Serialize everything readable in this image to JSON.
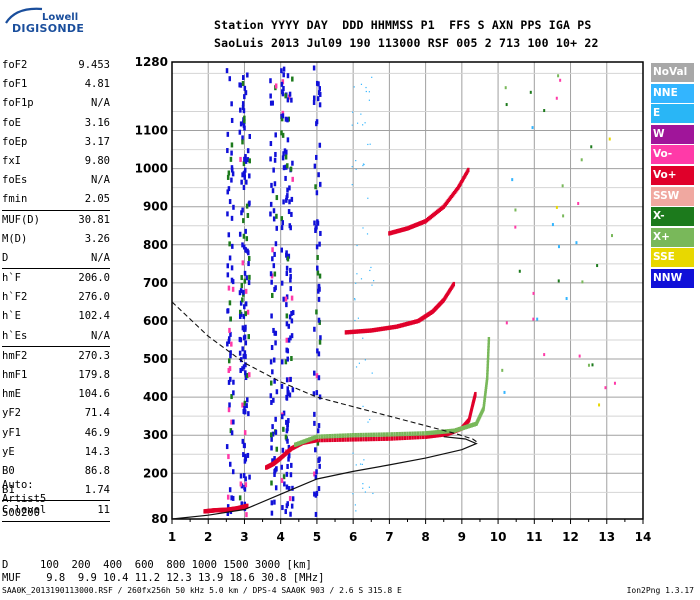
{
  "logo": {
    "line1": "Lowell",
    "line2": "DIGISONDE"
  },
  "header": {
    "line1": "Station YYYY DAY  DDD HHMMSS P1  FFS S AXN PPS IGA PS",
    "line2": "SaoLuis 2013 Jul09 190 113000 RSF 005 2 713 100 10+ 22"
  },
  "params": [
    [
      {
        "name": "foF2",
        "value": "9.453"
      },
      {
        "name": "foF1",
        "value": "4.81"
      },
      {
        "name": "foF1p",
        "value": "N/A"
      },
      {
        "name": "foE",
        "value": "3.16"
      },
      {
        "name": "foEp",
        "value": "3.17"
      },
      {
        "name": "fxI",
        "value": "9.80"
      },
      {
        "name": "foEs",
        "value": "N/A"
      },
      {
        "name": "fmin",
        "value": "2.05"
      }
    ],
    [
      {
        "name": "MUF(D)",
        "value": "30.81"
      },
      {
        "name": "M(D)",
        "value": "3.26"
      },
      {
        "name": "D",
        "value": "N/A"
      }
    ],
    [
      {
        "name": "h`F",
        "value": "206.0"
      },
      {
        "name": "h`F2",
        "value": "276.0"
      },
      {
        "name": "h`E",
        "value": "102.4"
      },
      {
        "name": "h`Es",
        "value": "N/A"
      }
    ],
    [
      {
        "name": "hmF2",
        "value": "270.3"
      },
      {
        "name": "hmF1",
        "value": "179.8"
      },
      {
        "name": "hmE",
        "value": "104.6"
      },
      {
        "name": "yF2",
        "value": "71.4"
      },
      {
        "name": "yF1",
        "value": "46.9"
      },
      {
        "name": "yE",
        "value": "14.3"
      },
      {
        "name": "B0",
        "value": "86.8"
      },
      {
        "name": "B1",
        "value": "1.74"
      }
    ],
    [
      {
        "name": "C-level",
        "value": "11"
      }
    ]
  ],
  "auto": {
    "line1": "Auto:",
    "line2": "Artist5",
    "line3": "500200"
  },
  "dmuf": {
    "d_label": "D",
    "d_values": "100  200  400  600  800 1000 1500 3000 [km]",
    "muf_label": "MUF",
    "muf_values": "9.8  9.9 10.4 11.2 12.3 13.9 18.6 30.8 [MHz]"
  },
  "footer": {
    "left": "SAA0K_2013190113000.RSF / 260fx256h 50 kHz 5.0 km / DPS-4 SAA0K 903 / 2.6 S 315.8 E",
    "right": "Ion2Png 1.3.17"
  },
  "legend": [
    {
      "label": "NoVal",
      "color": "#a8a8a8"
    },
    {
      "label": "NNE",
      "color": "#33b5ff"
    },
    {
      "label": "E",
      "color": "#29b6f6"
    },
    {
      "label": "W",
      "color": "#a0159a"
    },
    {
      "label": "Vo-",
      "color": "#ff3aa8"
    },
    {
      "label": "Vo+",
      "color": "#e0002a"
    },
    {
      "label": "SSW",
      "color": "#f0a8a0"
    },
    {
      "label": "X-",
      "color": "#1c7a1c"
    },
    {
      "label": "X+",
      "color": "#79b85a"
    },
    {
      "label": "SSE",
      "color": "#e8d800"
    },
    {
      "label": "NNW",
      "color": "#1010d8"
    }
  ],
  "chart_data": {
    "type": "scatter",
    "title": "",
    "xlabel": "",
    "ylabel": "",
    "xlim": [
      1,
      14
    ],
    "ylim": [
      80,
      1280
    ],
    "x_ticks": [
      "1",
      "2",
      "3",
      "4",
      "5",
      "6",
      "7",
      "8",
      "9",
      "10",
      "11",
      "12",
      "13",
      "14"
    ],
    "y_ticks": [
      "80",
      "200",
      "300",
      "400",
      "500",
      "600",
      "700",
      "800",
      "900",
      "1000",
      "1100",
      "1280"
    ],
    "grid": true,
    "series": [
      {
        "name": "Vo+",
        "color": "#e0002a",
        "values": [
          [
            3.6,
            215
          ],
          [
            3.8,
            225
          ],
          [
            4.0,
            240
          ],
          [
            4.3,
            265
          ],
          [
            4.6,
            280
          ],
          [
            5.0,
            287
          ],
          [
            6.0,
            289
          ],
          [
            7.0,
            291
          ],
          [
            8.0,
            296
          ],
          [
            8.6,
            303
          ],
          [
            9.0,
            318
          ],
          [
            9.2,
            340
          ],
          [
            9.3,
            380
          ],
          [
            9.38,
            410
          ]
        ]
      },
      {
        "name": "X+",
        "color": "#79b85a",
        "values": [
          [
            4.4,
            275
          ],
          [
            5.0,
            296
          ],
          [
            6.0,
            300
          ],
          [
            7.0,
            302
          ],
          [
            8.0,
            305
          ],
          [
            8.8,
            312
          ],
          [
            9.4,
            330
          ],
          [
            9.6,
            370
          ],
          [
            9.7,
            450
          ],
          [
            9.75,
            560
          ]
        ]
      },
      {
        "name": "Vo+ (2nd hop)",
        "color": "#e0002a",
        "values": [
          [
            5.8,
            570
          ],
          [
            6.5,
            575
          ],
          [
            7.2,
            585
          ],
          [
            7.8,
            600
          ],
          [
            8.2,
            625
          ],
          [
            8.5,
            655
          ],
          [
            8.8,
            700
          ]
        ]
      },
      {
        "name": "Vo+ (3rd hop)",
        "color": "#e0002a",
        "values": [
          [
            7.0,
            830
          ],
          [
            7.5,
            843
          ],
          [
            8.0,
            862
          ],
          [
            8.5,
            900
          ],
          [
            8.9,
            950
          ],
          [
            9.2,
            1000
          ]
        ]
      },
      {
        "name": "E-layer Vo+",
        "color": "#e0002a",
        "values": [
          [
            1.9,
            100
          ],
          [
            2.2,
            103
          ],
          [
            2.5,
            104
          ],
          [
            2.8,
            108
          ],
          [
            3.1,
            115
          ]
        ]
      }
    ],
    "profile_solid": [
      [
        1,
        80
      ],
      [
        2,
        90
      ],
      [
        3,
        105
      ],
      [
        4,
        145
      ],
      [
        5,
        185
      ],
      [
        6,
        205
      ],
      [
        7,
        222
      ],
      [
        8,
        240
      ],
      [
        9,
        262
      ],
      [
        9.4,
        278
      ],
      [
        9.1,
        290
      ],
      [
        8.5,
        296
      ]
    ],
    "profile_dashed": [
      [
        1,
        650
      ],
      [
        2,
        560
      ],
      [
        3,
        490
      ],
      [
        4,
        440
      ],
      [
        5,
        400
      ],
      [
        6,
        375
      ],
      [
        7,
        350
      ],
      [
        8,
        325
      ],
      [
        8.8,
        305
      ],
      [
        9.3,
        290
      ],
      [
        9.45,
        280
      ]
    ]
  }
}
